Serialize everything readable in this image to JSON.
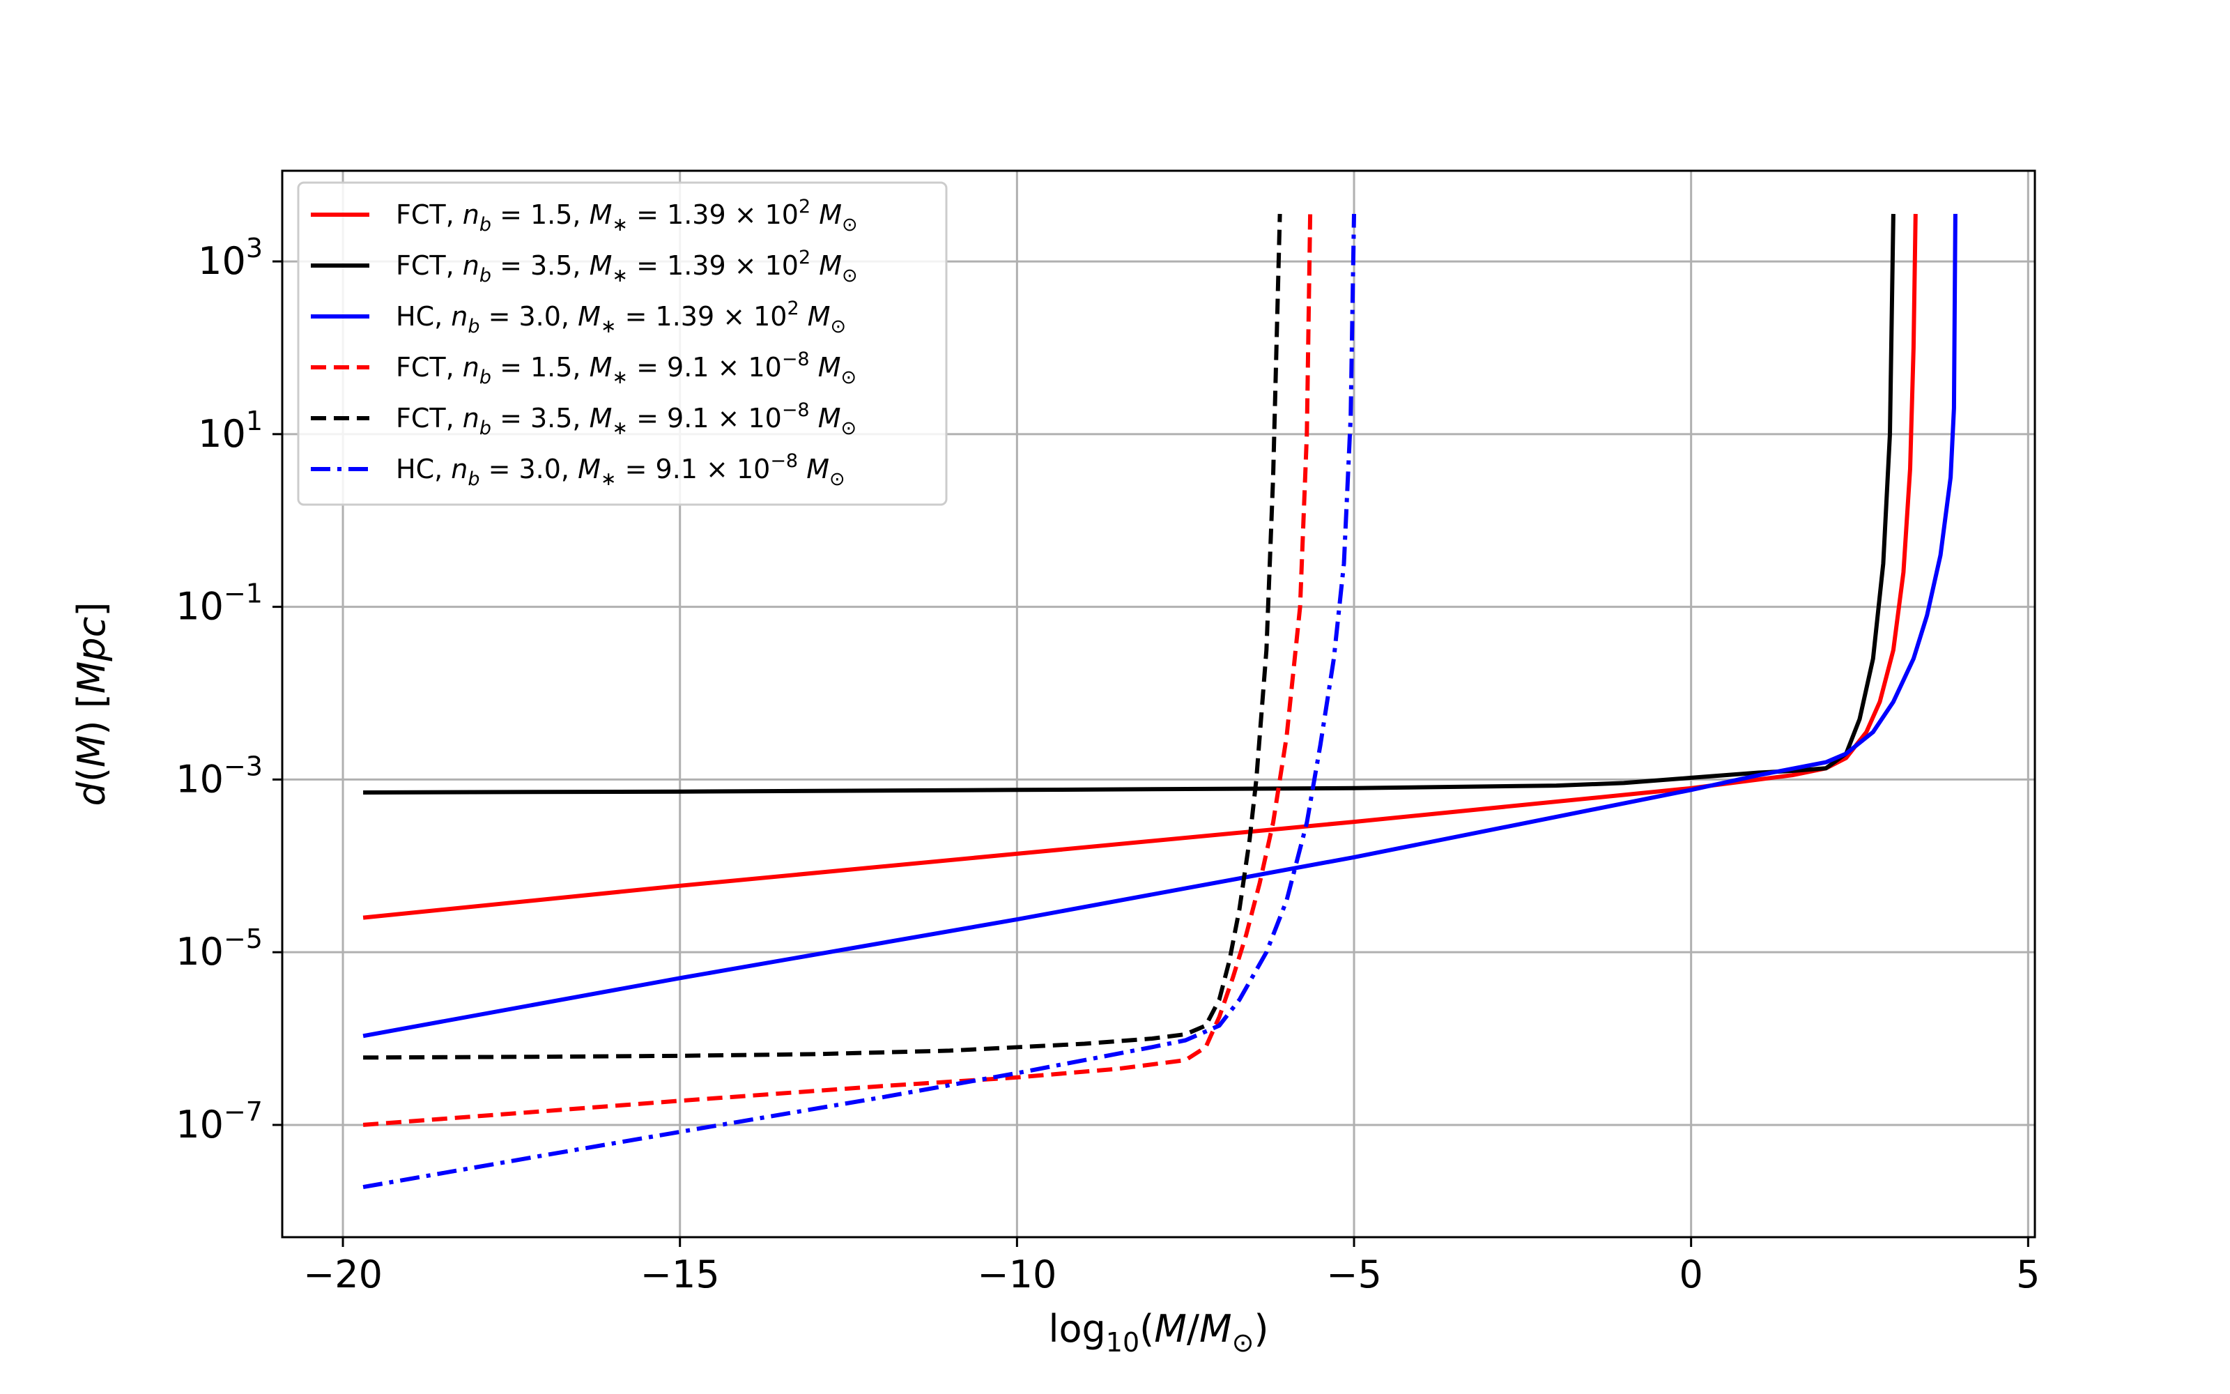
{
  "chart_data": {
    "type": "line",
    "xlabel": "log10(M/M⊙)",
    "ylabel": "d(M) [Mpc]",
    "xlim": [
      -20.9,
      5.1
    ],
    "ylim_log10": [
      -8.3,
      4.05
    ],
    "y_scale": "log",
    "grid": true,
    "legend_position": "upper-left",
    "x_ticks": [
      {
        "value": -20,
        "label": "−20"
      },
      {
        "value": -15,
        "label": "−15"
      },
      {
        "value": -10,
        "label": "−10"
      },
      {
        "value": -5,
        "label": "−5"
      },
      {
        "value": 0,
        "label": "0"
      },
      {
        "value": 5,
        "label": "5"
      }
    ],
    "y_ticks": [
      {
        "log10": 3,
        "base": "10",
        "exp": "3"
      },
      {
        "log10": 1,
        "base": "10",
        "exp": "1"
      },
      {
        "log10": -1,
        "base": "10",
        "exp": "−1"
      },
      {
        "log10": -3,
        "base": "10",
        "exp": "−3"
      },
      {
        "log10": -5,
        "base": "10",
        "exp": "−5"
      },
      {
        "log10": -7,
        "base": "10",
        "exp": "−7"
      }
    ],
    "series": [
      {
        "name": "FCT, n_b = 1.5, M* = 1.39 × 10^2 M⊙",
        "legend": {
          "prefix": "FCT, ",
          "nb": "1.5",
          "mstar": "1.39 × 10",
          "mexp": "2"
        },
        "color": "#ff0000",
        "dash": "solid",
        "x": [
          -19.7,
          -15,
          -10,
          -5,
          0,
          1,
          1.5,
          2,
          2.3,
          2.6,
          2.8,
          3.0,
          3.15,
          3.25,
          3.3,
          3.33
        ],
        "log10_y": [
          -4.6,
          -4.23,
          -3.86,
          -3.49,
          -3.1,
          -3.0,
          -2.95,
          -2.87,
          -2.75,
          -2.45,
          -2.1,
          -1.5,
          -0.6,
          0.6,
          2.0,
          3.55
        ]
      },
      {
        "name": "FCT, n_b = 3.5, M* = 1.39 × 10^2 M⊙",
        "legend": {
          "prefix": "FCT, ",
          "nb": "3.5",
          "mstar": "1.39 × 10",
          "mexp": "2"
        },
        "color": "#000000",
        "dash": "solid",
        "x": [
          -19.7,
          -15,
          -10,
          -5,
          -2,
          -1,
          0,
          1,
          1.5,
          2,
          2.3,
          2.5,
          2.7,
          2.85,
          2.95,
          3.0
        ],
        "log10_y": [
          -3.15,
          -3.14,
          -3.12,
          -3.1,
          -3.07,
          -3.04,
          -2.98,
          -2.92,
          -2.9,
          -2.87,
          -2.7,
          -2.3,
          -1.6,
          -0.5,
          1.0,
          3.55
        ]
      },
      {
        "name": "HC, n_b = 3.0, M* = 1.39 × 10^2 M⊙",
        "legend": {
          "prefix": "HC, ",
          "nb": "3.0",
          "mstar": "1.39 × 10",
          "mexp": "2"
        },
        "color": "#0000ff",
        "dash": "solid",
        "x": [
          -19.7,
          -15,
          -10,
          -5,
          0,
          1,
          2,
          2.3,
          2.7,
          3.0,
          3.3,
          3.5,
          3.7,
          3.85,
          3.9,
          3.92
        ],
        "log10_y": [
          -5.97,
          -5.3,
          -4.62,
          -3.9,
          -3.12,
          -2.95,
          -2.8,
          -2.7,
          -2.45,
          -2.1,
          -1.6,
          -1.1,
          -0.4,
          0.5,
          1.3,
          3.55
        ]
      },
      {
        "name": "FCT, n_b = 1.5, M* = 9.1 × 10^-8 M⊙",
        "legend": {
          "prefix": "FCT, ",
          "nb": "1.5",
          "mstar": "9.1 × 10",
          "mexp": "−8"
        },
        "color": "#ff0000",
        "dash": "dashed",
        "x": [
          -19.7,
          -17,
          -15,
          -12,
          -10,
          -8.5,
          -7.5,
          -7.2,
          -7.0,
          -6.8,
          -6.6,
          -6.4,
          -6.2,
          -6.0,
          -5.8,
          -5.7,
          -5.65
        ],
        "log10_y": [
          -7.0,
          -6.84,
          -6.72,
          -6.55,
          -6.45,
          -6.35,
          -6.25,
          -6.1,
          -5.75,
          -5.3,
          -4.8,
          -4.2,
          -3.5,
          -2.5,
          -1.0,
          1.0,
          3.55
        ]
      },
      {
        "name": "FCT, n_b = 3.5, M* = 9.1 × 10^-8 M⊙",
        "legend": {
          "prefix": "FCT, ",
          "nb": "3.5",
          "mstar": "9.1 × 10",
          "mexp": "−8"
        },
        "color": "#000000",
        "dash": "dashed",
        "x": [
          -19.7,
          -17,
          -15,
          -13,
          -11,
          -9,
          -8,
          -7.5,
          -7.2,
          -7.0,
          -6.85,
          -6.7,
          -6.55,
          -6.45,
          -6.3,
          -6.2,
          -6.1
        ],
        "log10_y": [
          -6.22,
          -6.21,
          -6.2,
          -6.18,
          -6.14,
          -6.06,
          -6.0,
          -5.95,
          -5.85,
          -5.55,
          -5.1,
          -4.5,
          -3.7,
          -3.0,
          -1.5,
          0.5,
          3.55
        ]
      },
      {
        "name": "HC, n_b = 3.0, M* = 9.1 × 10^-8 M⊙",
        "legend": {
          "prefix": "HC, ",
          "nb": "3.0",
          "mstar": "9.1 × 10",
          "mexp": "−8"
        },
        "color": "#0000ff",
        "dash": "dashdot",
        "x": [
          -19.7,
          -17,
          -15,
          -12,
          -10,
          -8,
          -7.5,
          -7.0,
          -6.7,
          -6.3,
          -6.0,
          -5.7,
          -5.5,
          -5.3,
          -5.15,
          -5.05,
          -5.0
        ],
        "log10_y": [
          -7.72,
          -7.35,
          -7.08,
          -6.68,
          -6.4,
          -6.1,
          -6.02,
          -5.85,
          -5.55,
          -5.0,
          -4.4,
          -3.5,
          -2.6,
          -1.6,
          -0.5,
          1.2,
          3.55
        ]
      }
    ]
  }
}
